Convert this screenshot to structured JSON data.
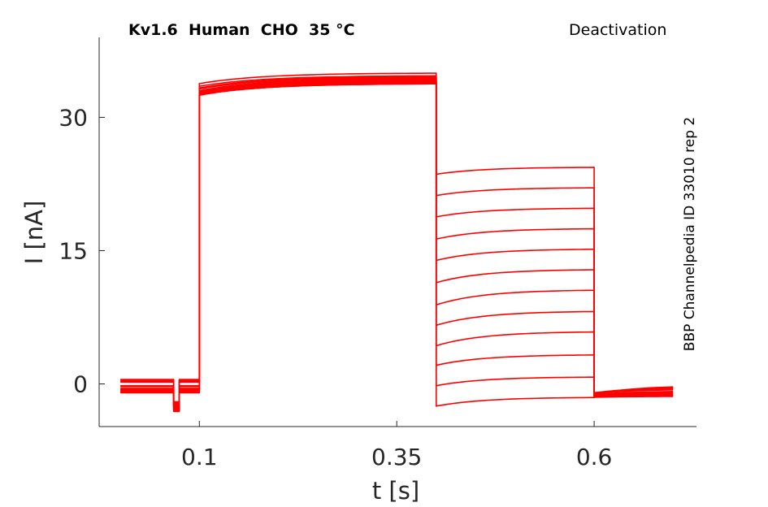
{
  "chart_data": {
    "type": "line",
    "title": "Kv1.6  Human  CHO  35 °C",
    "subtitle": "Deactivation",
    "annotation": "BBP Channelpedia ID 33010 rep 2",
    "xlabel": "t [s]",
    "ylabel": "I [nA]",
    "xlim": [
      -0.0269,
      0.7296
    ],
    "ylim": [
      -4.8,
      39.0
    ],
    "xticks": [
      0.1,
      0.35,
      0.6
    ],
    "xtick_labels": [
      "0.1",
      "0.35",
      "0.6"
    ],
    "yticks": [
      0,
      15,
      30
    ],
    "ytick_labels": [
      "0",
      "15",
      "30"
    ],
    "grid": false,
    "line_color": "#ff0000",
    "protocol": {
      "baseline_end": 0.1,
      "dip_interval": [
        0.0675,
        0.0745
      ],
      "activation_end": 0.4,
      "tail_end": 0.6,
      "trace_end": 0.7
    },
    "series": [
      {
        "baseline": 0.5,
        "activation_start": 33.8,
        "activation_end": 35.0,
        "tail_start": -2.5,
        "tail_end": -1.5,
        "post_start": -1.2,
        "post_end": -0.2
      },
      {
        "baseline": 0.3,
        "activation_start": 33.5,
        "activation_end": 34.7,
        "tail_start": -0.2,
        "tail_end": 0.8,
        "post_start": -1.1,
        "post_end": -0.3
      },
      {
        "baseline": 0.4,
        "activation_start": 33.3,
        "activation_end": 34.6,
        "tail_start": 2.1,
        "tail_end": 3.3,
        "post_start": -1.0,
        "post_end": -0.4
      },
      {
        "baseline": 0.2,
        "activation_start": 33.2,
        "activation_end": 34.5,
        "tail_start": 4.3,
        "tail_end": 5.9,
        "post_start": -1.0,
        "post_end": -0.5
      },
      {
        "baseline": -0.2,
        "activation_start": 33.0,
        "activation_end": 34.4,
        "tail_start": 6.6,
        "tail_end": 8.2,
        "post_start": -1.1,
        "post_end": -0.6
      },
      {
        "baseline": -0.3,
        "activation_start": 32.9,
        "activation_end": 34.3,
        "tail_start": 8.9,
        "tail_end": 10.6,
        "post_start": -1.2,
        "post_end": -0.8
      },
      {
        "baseline": -0.5,
        "activation_start": 32.8,
        "activation_end": 34.2,
        "tail_start": 11.4,
        "tail_end": 12.9,
        "post_start": -1.2,
        "post_end": -0.9
      },
      {
        "baseline": -0.6,
        "activation_start": 32.7,
        "activation_end": 34.1,
        "tail_start": 13.9,
        "tail_end": 15.2,
        "post_start": -1.3,
        "post_end": -1.0
      },
      {
        "baseline": -0.7,
        "activation_start": 32.6,
        "activation_end": 34.0,
        "tail_start": 16.3,
        "tail_end": 17.5,
        "post_start": -1.3,
        "post_end": -1.1
      },
      {
        "baseline": -0.8,
        "activation_start": 32.6,
        "activation_end": 33.9,
        "tail_start": 18.8,
        "tail_end": 19.8,
        "post_start": -1.4,
        "post_end": -1.2
      },
      {
        "baseline": -0.9,
        "activation_start": 32.5,
        "activation_end": 33.8,
        "tail_start": 21.2,
        "tail_end": 22.1,
        "post_start": -1.4,
        "post_end": -1.3
      },
      {
        "baseline": -1.0,
        "activation_start": 32.5,
        "activation_end": 33.8,
        "tail_start": 23.6,
        "tail_end": 24.4,
        "post_start": -1.5,
        "post_end": -1.4
      }
    ]
  }
}
